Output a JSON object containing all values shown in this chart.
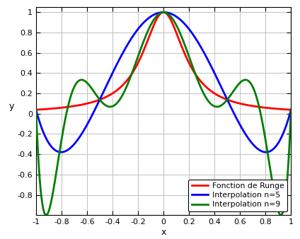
{
  "title": "",
  "xlabel": "x",
  "ylabel": "y",
  "xlim": [
    -1,
    1
  ],
  "ylim": [
    -1.0,
    1.05
  ],
  "xticks": [
    -1,
    -0.8,
    -0.6,
    -0.4,
    -0.2,
    0,
    0.2,
    0.4,
    0.6,
    0.8,
    1
  ],
  "yticks": [
    -0.8,
    -0.6,
    -0.4,
    -0.2,
    0,
    0.2,
    0.4,
    0.6,
    0.8,
    1
  ],
  "runge_color": "#FF0000",
  "interp5_color": "#0000FF",
  "interp9_color": "#007F00",
  "line_width": 2.0,
  "legend_labels": [
    "Fonction de Runge",
    "Interpolation n=5",
    "Interpolation n=9"
  ],
  "n5": 5,
  "n9": 9,
  "background_color": "#FFFFFF",
  "grid_color": "#C0C0C0"
}
